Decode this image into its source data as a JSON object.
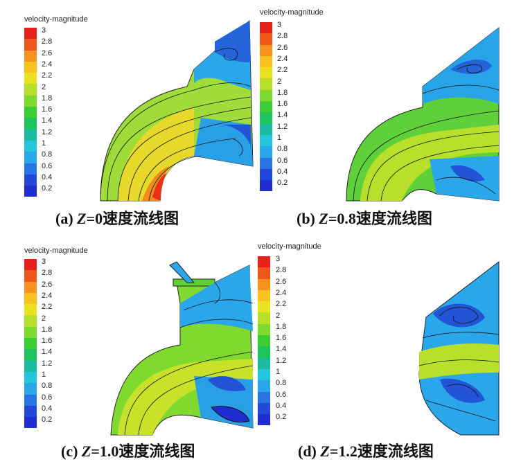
{
  "legend": {
    "title": "velocity-magnitude",
    "ticks": [
      "3",
      "2.8",
      "2.6",
      "2.4",
      "2.2",
      "2",
      "1.8",
      "1.6",
      "1.4",
      "1.2",
      "1",
      "0.8",
      "0.6",
      "0.4",
      "0.2"
    ],
    "colors": [
      "#e8201a",
      "#f0561b",
      "#f7921f",
      "#f9c21e",
      "#e9e31f",
      "#b8e02a",
      "#7fd92f",
      "#3ccd35",
      "#1ec35c",
      "#1abb9f",
      "#23c6dc",
      "#2aa6ea",
      "#2874e3",
      "#2347d8",
      "#1e2cd0"
    ]
  },
  "panels": [
    {
      "label": "(a)",
      "var": "Z",
      "value": "=0",
      "suffix": "速度流线图"
    },
    {
      "label": "(b)",
      "var": "Z",
      "value": "=0.8",
      "suffix": "速度流线图"
    },
    {
      "label": "(c)",
      "var": "Z",
      "value": "=1.0",
      "suffix": "速度流线图"
    },
    {
      "label": "(d)",
      "var": "Z",
      "value": "=1.2",
      "suffix": "速度流线图"
    }
  ]
}
